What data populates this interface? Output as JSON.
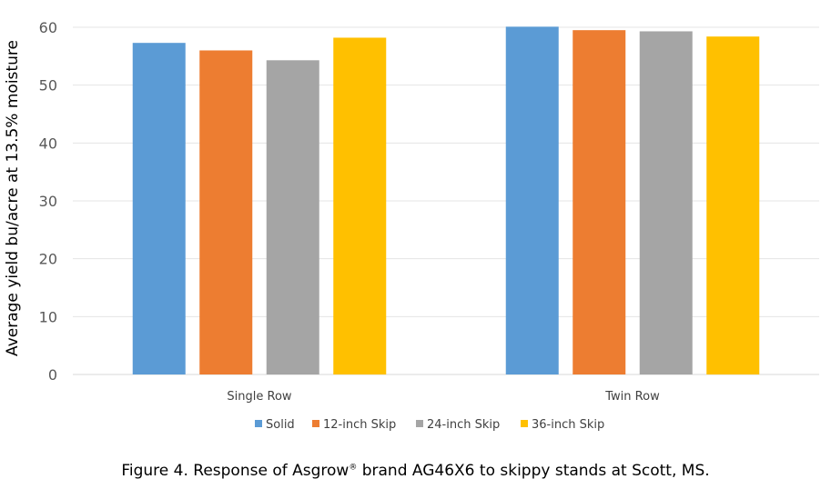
{
  "chart_data": {
    "type": "bar",
    "title": "",
    "ylabel": "Average yield bu/acre at 13.5% moisture",
    "xlabel": "",
    "ylim": [
      0,
      60
    ],
    "yticks": [
      0,
      10,
      20,
      30,
      40,
      50,
      60
    ],
    "grid": true,
    "legend_position": "bottom",
    "categories": [
      "Single Row",
      "Twin Row"
    ],
    "series": [
      {
        "name": "Solid",
        "color": "#5B9BD5",
        "values": [
          57.3,
          60.1
        ]
      },
      {
        "name": "12-inch Skip",
        "color": "#ED7D31",
        "values": [
          56.0,
          59.5
        ]
      },
      {
        "name": "24-inch Skip",
        "color": "#A5A5A5",
        "values": [
          54.3,
          59.3
        ]
      },
      {
        "name": "36-inch Skip",
        "color": "#FFC000",
        "values": [
          58.2,
          58.4
        ]
      }
    ]
  },
  "caption": {
    "prefix": "Figure 4. Response of  Asgrow",
    "registered": "®",
    "suffix": " brand AG46X6 to skippy stands at Scott, MS."
  }
}
